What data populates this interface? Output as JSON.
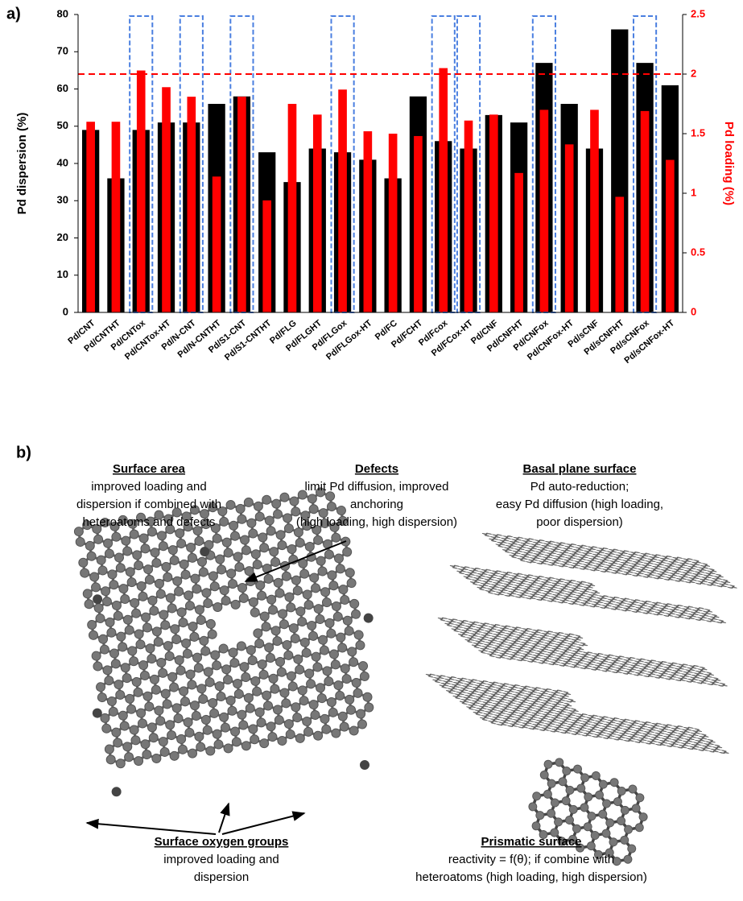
{
  "chart_data": {
    "type": "bar",
    "panel_label": "a)",
    "y_label": "Pd dispersion (%)",
    "y2_label": "Pd loading (%)",
    "categories": [
      "Pd/CNT",
      "Pd/CNTHT",
      "Pd/CNTox",
      "Pd/CNTox-HT",
      "Pd/N-CNT",
      "Pd/N-CNTHT",
      "Pd/S1-CNT",
      "Pd/S1-CNTHT",
      "Pd/FLG",
      "Pd/FLGHT",
      "Pd/FLGox",
      "Pd/FLGox-HT",
      "Pd/FC",
      "Pd/FCHT",
      "Pd/Fcox",
      "Pd/FCox-HT",
      "Pd/CNF",
      "Pd/CNFHT",
      "Pd/CNFox",
      "Pd/CNFox-HT",
      "Pd/sCNF",
      "Pd/sCNFHT",
      "Pd/sCNFox",
      "Pd/sCNFox-HT"
    ],
    "series": [
      {
        "name": "Pd dispersion",
        "color": "#000000",
        "axis": "y",
        "values": [
          49,
          36,
          49,
          51,
          51,
          56,
          58,
          43,
          35,
          44,
          43,
          41,
          36,
          58,
          46,
          44,
          53,
          51,
          67,
          56,
          44,
          76,
          67,
          61
        ]
      },
      {
        "name": "Pd loading",
        "color": "#ff0000",
        "axis": "y2",
        "values": [
          1.6,
          1.6,
          2.03,
          1.89,
          1.81,
          1.14,
          1.81,
          0.94,
          1.75,
          1.66,
          1.87,
          1.52,
          1.5,
          1.48,
          2.05,
          1.61,
          1.66,
          1.17,
          1.7,
          1.41,
          1.7,
          0.97,
          1.69,
          1.28
        ]
      }
    ],
    "ylim": [
      0,
      80
    ],
    "yticks": [
      0,
      10,
      20,
      30,
      40,
      50,
      60,
      70,
      80
    ],
    "y2lim": [
      0,
      2.5
    ],
    "y2ticks": [
      0,
      0.5,
      1,
      1.5,
      2,
      2.5
    ],
    "y2_color": "#ff0000",
    "reference_line": {
      "axis": "y2",
      "value": 2,
      "color": "#ff0000"
    },
    "highlight_categories": [
      "Pd/CNTox",
      "Pd/N-CNT",
      "Pd/S1-CNT",
      "Pd/FLGox",
      "Pd/Fcox",
      "Pd/FCox-HT",
      "Pd/CNFox",
      "Pd/sCNFox"
    ],
    "highlight_color": "#4a7fe0"
  },
  "panel_b": {
    "label": "b)",
    "annotations": [
      {
        "title": "Surface area",
        "lines": [
          "improved loading and",
          "dispersion if combined with",
          "heteroatoms and defects"
        ]
      },
      {
        "title": "Defects",
        "lines": [
          "limit Pd diffusion, improved",
          "anchoring",
          "(high loading, high dispersion)"
        ]
      },
      {
        "title": "Basal plane surface",
        "lines": [
          "Pd auto-reduction;",
          "easy Pd diffusion (high loading,",
          "poor dispersion)"
        ]
      },
      {
        "title": "Surface oxygen groups",
        "lines": [
          "improved loading and",
          "dispersion"
        ]
      },
      {
        "title": "Prismatic surface",
        "lines": [
          "reactivity = f(θ);  if combine with",
          "heteroatoms (high loading, high dispersion)"
        ]
      }
    ]
  }
}
